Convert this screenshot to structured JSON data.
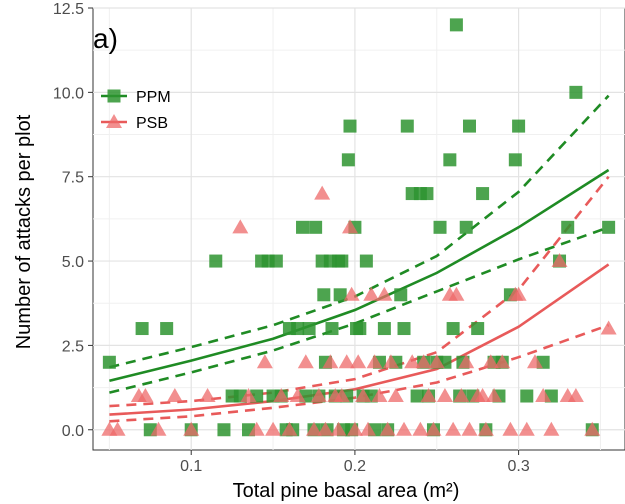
{
  "chart_data": {
    "type": "scatter",
    "panel_label": "a)",
    "xlabel": "Total pine basal area (m²)",
    "ylabel": "Number of attacks per plot",
    "xlim": [
      0.04,
      0.365
    ],
    "ylim": [
      -0.6,
      12.5
    ],
    "x_ticks": [
      0.1,
      0.2,
      0.3
    ],
    "x_tick_labels": [
      "0.1",
      "0.2",
      "0.3"
    ],
    "y_ticks": [
      0,
      2.5,
      5,
      7.5,
      10,
      12.5
    ],
    "y_tick_labels": [
      "0.0",
      "2.5",
      "5.0",
      "7.5",
      "10.0",
      "12.5"
    ],
    "grid": true,
    "legend_position": "top-left",
    "series": [
      {
        "name": "PPM",
        "marker": "square",
        "color": "#2e9430",
        "points": [
          [
            0.05,
            2
          ],
          [
            0.07,
            3
          ],
          [
            0.085,
            3
          ],
          [
            0.075,
            0
          ],
          [
            0.1,
            0
          ],
          [
            0.115,
            5
          ],
          [
            0.12,
            0
          ],
          [
            0.125,
            1
          ],
          [
            0.13,
            1
          ],
          [
            0.135,
            0
          ],
          [
            0.14,
            1
          ],
          [
            0.143,
            5
          ],
          [
            0.147,
            5
          ],
          [
            0.15,
            1
          ],
          [
            0.152,
            5
          ],
          [
            0.155,
            1
          ],
          [
            0.158,
            0
          ],
          [
            0.16,
            3
          ],
          [
            0.162,
            0
          ],
          [
            0.165,
            3
          ],
          [
            0.168,
            6
          ],
          [
            0.17,
            1
          ],
          [
            0.172,
            3
          ],
          [
            0.175,
            0
          ],
          [
            0.176,
            6
          ],
          [
            0.178,
            1
          ],
          [
            0.18,
            5
          ],
          [
            0.181,
            4
          ],
          [
            0.182,
            2
          ],
          [
            0.183,
            0
          ],
          [
            0.185,
            5
          ],
          [
            0.186,
            3
          ],
          [
            0.188,
            1
          ],
          [
            0.19,
            5
          ],
          [
            0.191,
            4
          ],
          [
            0.192,
            5
          ],
          [
            0.193,
            0
          ],
          [
            0.195,
            1
          ],
          [
            0.196,
            8
          ],
          [
            0.197,
            9
          ],
          [
            0.198,
            0
          ],
          [
            0.2,
            6
          ],
          [
            0.201,
            3
          ],
          [
            0.203,
            3
          ],
          [
            0.205,
            1
          ],
          [
            0.207,
            5
          ],
          [
            0.21,
            1
          ],
          [
            0.212,
            0
          ],
          [
            0.215,
            2
          ],
          [
            0.218,
            3
          ],
          [
            0.22,
            0
          ],
          [
            0.225,
            2
          ],
          [
            0.228,
            4
          ],
          [
            0.23,
            3
          ],
          [
            0.232,
            9
          ],
          [
            0.235,
            7
          ],
          [
            0.238,
            1
          ],
          [
            0.24,
            7
          ],
          [
            0.242,
            2
          ],
          [
            0.244,
            7
          ],
          [
            0.245,
            1
          ],
          [
            0.248,
            0
          ],
          [
            0.25,
            2
          ],
          [
            0.252,
            6
          ],
          [
            0.255,
            2
          ],
          [
            0.258,
            8
          ],
          [
            0.26,
            3
          ],
          [
            0.262,
            12
          ],
          [
            0.264,
            1
          ],
          [
            0.266,
            2
          ],
          [
            0.268,
            6
          ],
          [
            0.27,
            9
          ],
          [
            0.272,
            1
          ],
          [
            0.275,
            3
          ],
          [
            0.278,
            7
          ],
          [
            0.28,
            0
          ],
          [
            0.285,
            2
          ],
          [
            0.288,
            1
          ],
          [
            0.29,
            2
          ],
          [
            0.295,
            4
          ],
          [
            0.298,
            8
          ],
          [
            0.3,
            9
          ],
          [
            0.305,
            1
          ],
          [
            0.315,
            2
          ],
          [
            0.32,
            1
          ],
          [
            0.325,
            5
          ],
          [
            0.33,
            6
          ],
          [
            0.335,
            10
          ],
          [
            0.345,
            0
          ],
          [
            0.355,
            6
          ]
        ],
        "fit": [
          [
            0.05,
            1.45
          ],
          [
            0.1,
            2.05
          ],
          [
            0.15,
            2.7
          ],
          [
            0.2,
            3.55
          ],
          [
            0.25,
            4.65
          ],
          [
            0.3,
            6.0
          ],
          [
            0.355,
            7.7
          ]
        ],
        "ci_upper": [
          [
            0.05,
            1.85
          ],
          [
            0.1,
            2.45
          ],
          [
            0.15,
            3.1
          ],
          [
            0.2,
            3.95
          ],
          [
            0.25,
            5.15
          ],
          [
            0.3,
            7.05
          ],
          [
            0.355,
            9.9
          ]
        ],
        "ci_lower": [
          [
            0.05,
            1.1
          ],
          [
            0.1,
            1.7
          ],
          [
            0.15,
            2.35
          ],
          [
            0.2,
            3.15
          ],
          [
            0.25,
            4.1
          ],
          [
            0.3,
            5.05
          ],
          [
            0.355,
            6.0
          ]
        ]
      },
      {
        "name": "PSB",
        "marker": "triangle",
        "color": "#ee6a6a",
        "points": [
          [
            0.05,
            0
          ],
          [
            0.055,
            0
          ],
          [
            0.068,
            1
          ],
          [
            0.072,
            1
          ],
          [
            0.08,
            0
          ],
          [
            0.09,
            1
          ],
          [
            0.1,
            0
          ],
          [
            0.11,
            1
          ],
          [
            0.13,
            6
          ],
          [
            0.135,
            1
          ],
          [
            0.14,
            0
          ],
          [
            0.145,
            2
          ],
          [
            0.15,
            0
          ],
          [
            0.155,
            1
          ],
          [
            0.16,
            0
          ],
          [
            0.165,
            1
          ],
          [
            0.17,
            2
          ],
          [
            0.175,
            0
          ],
          [
            0.178,
            1
          ],
          [
            0.18,
            7
          ],
          [
            0.182,
            0
          ],
          [
            0.185,
            2
          ],
          [
            0.188,
            1
          ],
          [
            0.19,
            0
          ],
          [
            0.192,
            1
          ],
          [
            0.195,
            2
          ],
          [
            0.197,
            6
          ],
          [
            0.198,
            4
          ],
          [
            0.2,
            0
          ],
          [
            0.202,
            2
          ],
          [
            0.205,
            1
          ],
          [
            0.208,
            0
          ],
          [
            0.21,
            4
          ],
          [
            0.212,
            2
          ],
          [
            0.215,
            1
          ],
          [
            0.218,
            4
          ],
          [
            0.22,
            0
          ],
          [
            0.222,
            2
          ],
          [
            0.225,
            1
          ],
          [
            0.23,
            0
          ],
          [
            0.235,
            2
          ],
          [
            0.24,
            0
          ],
          [
            0.242,
            2
          ],
          [
            0.245,
            1
          ],
          [
            0.248,
            0
          ],
          [
            0.25,
            2
          ],
          [
            0.255,
            1
          ],
          [
            0.258,
            4
          ],
          [
            0.26,
            0
          ],
          [
            0.262,
            4
          ],
          [
            0.265,
            1
          ],
          [
            0.268,
            2
          ],
          [
            0.27,
            0
          ],
          [
            0.275,
            1
          ],
          [
            0.278,
            1
          ],
          [
            0.28,
            0
          ],
          [
            0.283,
            2
          ],
          [
            0.285,
            1
          ],
          [
            0.29,
            2
          ],
          [
            0.295,
            0
          ],
          [
            0.298,
            4
          ],
          [
            0.3,
            4
          ],
          [
            0.305,
            0
          ],
          [
            0.31,
            2
          ],
          [
            0.315,
            1
          ],
          [
            0.32,
            0
          ],
          [
            0.325,
            5
          ],
          [
            0.33,
            1
          ],
          [
            0.335,
            1
          ],
          [
            0.345,
            0
          ],
          [
            0.355,
            3
          ]
        ],
        "fit": [
          [
            0.05,
            0.45
          ],
          [
            0.1,
            0.6
          ],
          [
            0.15,
            0.85
          ],
          [
            0.2,
            1.2
          ],
          [
            0.25,
            1.8
          ],
          [
            0.3,
            3.05
          ],
          [
            0.355,
            4.9
          ]
        ],
        "ci_upper": [
          [
            0.05,
            0.7
          ],
          [
            0.1,
            0.85
          ],
          [
            0.15,
            1.1
          ],
          [
            0.2,
            1.5
          ],
          [
            0.25,
            2.3
          ],
          [
            0.3,
            4.15
          ],
          [
            0.355,
            7.5
          ]
        ],
        "ci_lower": [
          [
            0.05,
            0.25
          ],
          [
            0.1,
            0.4
          ],
          [
            0.15,
            0.65
          ],
          [
            0.2,
            0.95
          ],
          [
            0.25,
            1.4
          ],
          [
            0.3,
            2.15
          ],
          [
            0.355,
            3.1
          ]
        ]
      }
    ]
  }
}
